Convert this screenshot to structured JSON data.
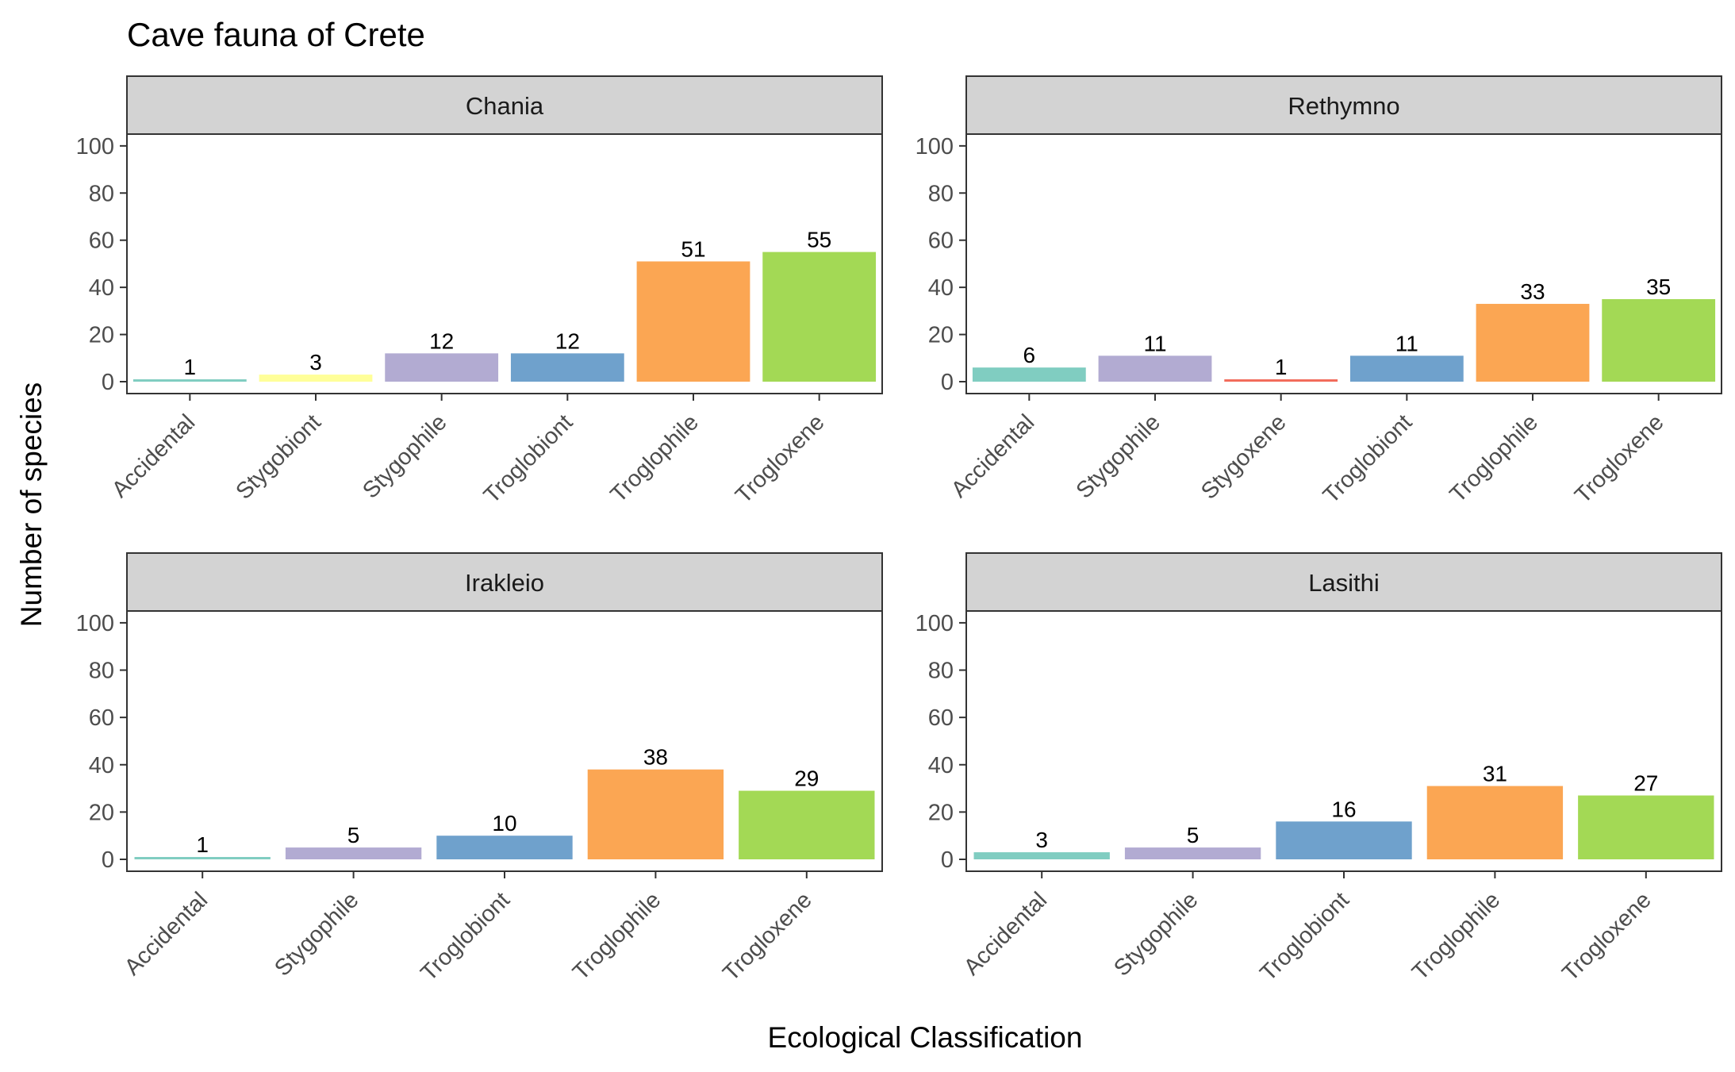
{
  "chart_data": {
    "type": "bar",
    "title": "Cave fauna of Crete",
    "xlabel": "Ecological Classification",
    "ylabel": "Number of species",
    "ylim": [
      0,
      105
    ],
    "yticks": [
      0,
      20,
      40,
      60,
      80,
      100
    ],
    "grid": false,
    "legend": "none",
    "colors": {
      "Accidental": "#80cdc1",
      "Stygobiont": "#ffff99",
      "Stygophile": "#b2abd2",
      "Stygoxene": "#f26b5b",
      "Troglobiont": "#6fa1cc",
      "Troglophile": "#fba653",
      "Trogloxene": "#a3d955"
    },
    "panels": [
      {
        "name": "Chania",
        "categories": [
          "Accidental",
          "Stygobiont",
          "Stygophile",
          "Troglobiont",
          "Troglophile",
          "Trogloxene"
        ],
        "values": [
          1,
          3,
          12,
          12,
          51,
          55
        ]
      },
      {
        "name": "Rethymno",
        "categories": [
          "Accidental",
          "Stygophile",
          "Stygoxene",
          "Troglobiont",
          "Troglophile",
          "Trogloxene"
        ],
        "values": [
          6,
          11,
          1,
          11,
          33,
          35
        ]
      },
      {
        "name": "Irakleio",
        "categories": [
          "Accidental",
          "Stygophile",
          "Troglobiont",
          "Troglophile",
          "Trogloxene"
        ],
        "values": [
          1,
          5,
          10,
          38,
          29
        ]
      },
      {
        "name": "Lasithi",
        "categories": [
          "Accidental",
          "Stygophile",
          "Troglobiont",
          "Troglophile",
          "Trogloxene"
        ],
        "values": [
          3,
          5,
          16,
          31,
          27
        ]
      }
    ]
  }
}
